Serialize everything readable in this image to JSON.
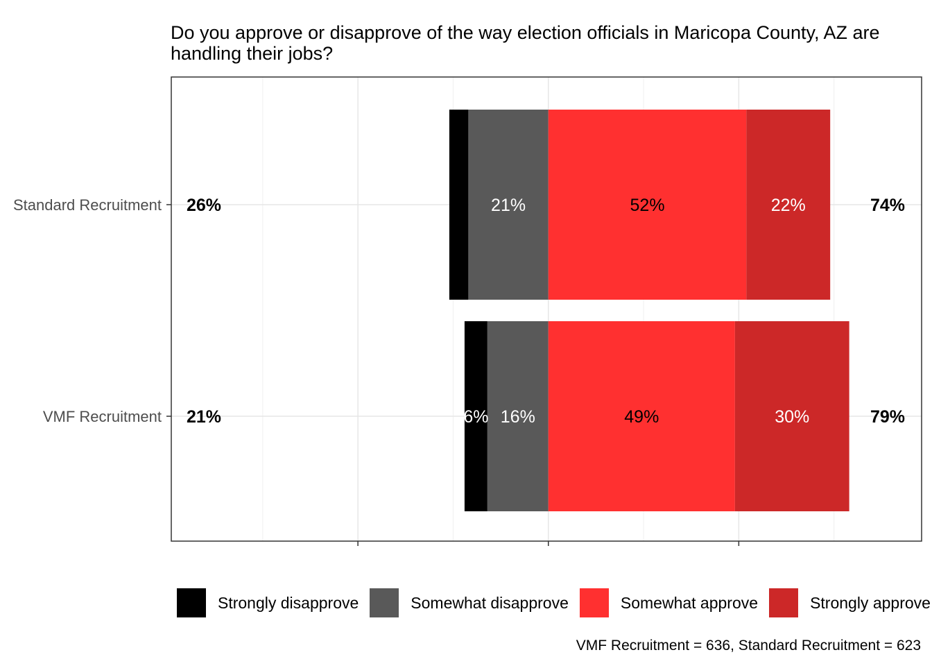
{
  "chart_data": {
    "type": "bar",
    "orientation": "horizontal",
    "stacked": "diverging",
    "title_lines": [
      "Do you approve or disapprove of the way election officials in Maricopa County, AZ are",
      "handling their jobs?"
    ],
    "categories": [
      "Standard Recruitment",
      "VMF Recruitment"
    ],
    "series": [
      {
        "name": "Strongly disapprove",
        "color": "#000000",
        "text_color": "#ffffff",
        "values": [
          5,
          6
        ],
        "labels": [
          "",
          "6%"
        ]
      },
      {
        "name": "Somewhat disapprove",
        "color": "#595959",
        "text_color": "#ffffff",
        "values": [
          21,
          16
        ],
        "labels": [
          "21%",
          "16%"
        ]
      },
      {
        "name": "Somewhat approve",
        "color": "#ff3030",
        "text_color": "#000000",
        "values": [
          52,
          49
        ],
        "labels": [
          "52%",
          "49%"
        ]
      },
      {
        "name": "Strongly approve",
        "color": "#cc2828",
        "text_color": "#ffffff",
        "values": [
          22,
          30
        ],
        "labels": [
          "22%",
          "30%"
        ]
      }
    ],
    "disapprove_totals": [
      "26%",
      "21%"
    ],
    "approve_totals": [
      "74%",
      "79%"
    ],
    "xlim": [
      -99,
      98
    ],
    "grid": true,
    "legend_position": "bottom",
    "caption": "VMF Recruitment = 636, Standard Recruitment = 623"
  }
}
